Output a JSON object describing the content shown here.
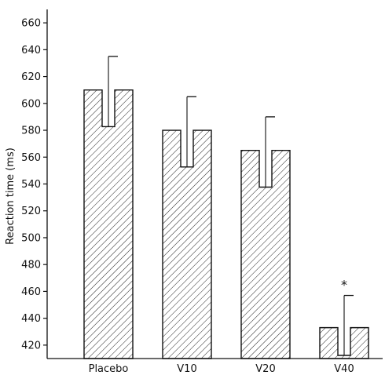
{
  "chart_data": {
    "type": "bar",
    "ylabel": "Reaction time (ms)",
    "xlabel": "",
    "title": "",
    "ylim": [
      410,
      670
    ],
    "yticks": [
      420,
      440,
      460,
      480,
      500,
      520,
      540,
      560,
      580,
      600,
      620,
      640,
      660
    ],
    "categories": [
      "Placebo",
      "V10",
      "V20",
      "V40"
    ],
    "values": [
      610,
      580,
      565,
      433
    ],
    "error_upper": [
      635,
      605,
      590,
      457
    ],
    "annotations": [
      {
        "category": "V40",
        "text": "*"
      }
    ],
    "fill": "diagonal hatch",
    "grid": false,
    "colors": {
      "stroke": "#111111",
      "background": "#ffffff"
    }
  }
}
